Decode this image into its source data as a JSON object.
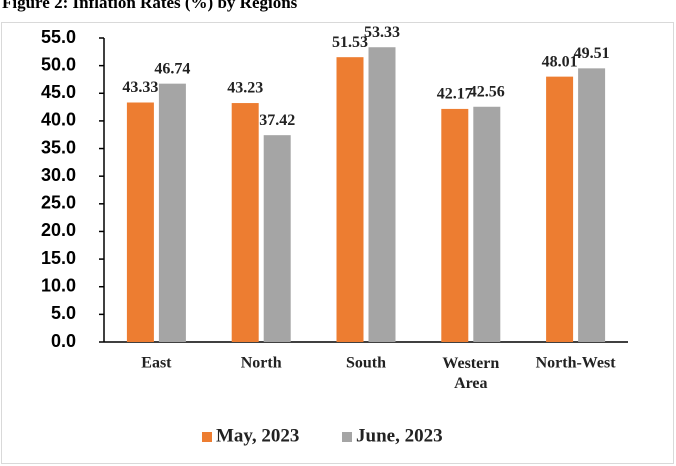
{
  "chart_data": {
    "type": "bar",
    "title": "Figure 2: Inflation Rates (%) by Regions",
    "categories": [
      "East",
      "North",
      "South",
      "Western Area",
      "North-West"
    ],
    "series": [
      {
        "name": "May, 2023",
        "color": "#ed7d31",
        "values": [
          43.33,
          43.23,
          51.53,
          42.17,
          48.01
        ]
      },
      {
        "name": "June, 2023",
        "color": "#a5a5a5",
        "values": [
          46.74,
          37.42,
          53.33,
          42.56,
          49.51
        ]
      }
    ],
    "ylim": [
      0,
      55
    ],
    "yticks": [
      {
        "value": 0,
        "label": "0.0"
      },
      {
        "value": 5,
        "label": "5.0"
      },
      {
        "value": 10,
        "label": "10.0"
      },
      {
        "value": 15,
        "label": "15.0"
      },
      {
        "value": 20,
        "label": "20.0"
      },
      {
        "value": 25,
        "label": "25.0"
      },
      {
        "value": 30,
        "label": "30.0"
      },
      {
        "value": 35,
        "label": "35.0"
      },
      {
        "value": 40,
        "label": "40.0"
      },
      {
        "value": 45,
        "label": "45.0"
      },
      {
        "value": 50,
        "label": "50.0"
      },
      {
        "value": 55,
        "label": "55.0"
      }
    ],
    "grid": false,
    "legend": "bottom"
  }
}
